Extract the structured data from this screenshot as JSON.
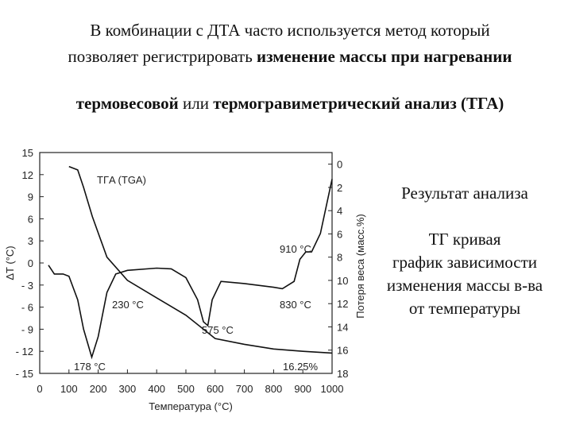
{
  "slide": {
    "line1": "В комбинации с ДТА часто используется метод который",
    "line2a": "позволяет регистрировать",
    "line2b": "изменение массы при нагревании",
    "line3a": "термовесовой",
    "line3b": "или",
    "line3c": "термогравиметрический анализ (ТГА)",
    "side": [
      "Результат анализа",
      "ТГ кривая",
      "график зависимости",
      "изменения массы в-ва",
      "от температуры"
    ]
  },
  "chart_data": {
    "type": "line",
    "x_label": "Температура (°C)",
    "y_label": "ΔT (°C)",
    "y2_label": "Потеря веса (масс.%)",
    "xlim": [
      0,
      1000
    ],
    "xticks": [
      0,
      100,
      200,
      300,
      400,
      500,
      600,
      700,
      800,
      900,
      1000
    ],
    "ylim": [
      -15,
      15
    ],
    "yticks": [
      15,
      12,
      9,
      6,
      3,
      0,
      {
        "value": -3,
        "label": "- 3"
      },
      {
        "value": -6,
        "label": "- 6"
      },
      {
        "value": -9,
        "label": "- 9"
      },
      {
        "value": -12,
        "label": "- 12"
      },
      {
        "value": -15,
        "label": "- 15"
      }
    ],
    "y2lim": [
      18,
      -1
    ],
    "y2ticks": [
      0,
      2,
      4,
      6,
      8,
      10,
      12,
      14,
      16,
      18
    ],
    "series": [
      {
        "color": "#111111",
        "x": [
          30,
          50,
          80,
          100,
          130,
          150,
          178,
          200,
          230,
          260,
          300,
          400,
          450,
          500,
          540,
          560,
          575,
          590,
          620,
          700,
          800,
          830,
          870,
          890,
          910,
          930,
          960,
          1000
        ],
        "values": [
          -0.3,
          -1.5,
          -1.5,
          -1.8,
          -5,
          -9,
          -12.8,
          -10,
          -4,
          -1.5,
          -1,
          -0.7,
          -0.8,
          -2,
          -5,
          -8,
          -8.5,
          -5,
          -2.5,
          -2.8,
          -3.3,
          -3.5,
          -2.5,
          0.5,
          1.5,
          1.5,
          4,
          11.4
        ]
      },
      {
        "name": "TГA (TGA)",
        "color": "#111111",
        "axis": "y2",
        "x": [
          100,
          130,
          150,
          180,
          230,
          300,
          400,
          500,
          575,
          600,
          700,
          800,
          900,
          1000
        ],
        "values": [
          0.2,
          0.5,
          2,
          4.5,
          8,
          10,
          11.5,
          13,
          14.5,
          15,
          15.5,
          15.9,
          16.1,
          16.25
        ]
      }
    ],
    "annotations": [
      "178 °C",
      "230 °C",
      "575 °C",
      "910 °C",
      "830 °C",
      "16.25%"
    ]
  }
}
